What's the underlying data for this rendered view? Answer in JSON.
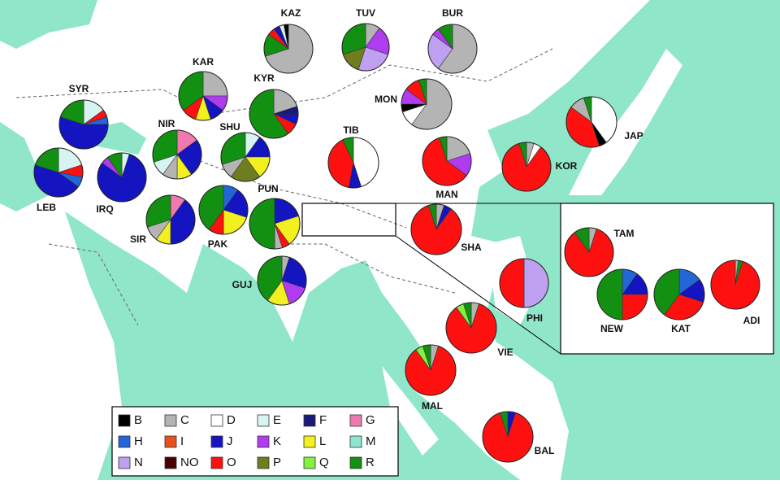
{
  "legend": [
    {
      "label": "B",
      "color": "#000000"
    },
    {
      "label": "C",
      "color": "#b4b4b4"
    },
    {
      "label": "D",
      "color": "#ffffff"
    },
    {
      "label": "E",
      "color": "#d8f4f2"
    },
    {
      "label": "F",
      "color": "#1a1a7a"
    },
    {
      "label": "G",
      "color": "#f07ab0"
    },
    {
      "label": "H",
      "color": "#2266d8"
    },
    {
      "label": "I",
      "color": "#e8501e"
    },
    {
      "label": "J",
      "color": "#1414c0"
    },
    {
      "label": "K",
      "color": "#b03cf0"
    },
    {
      "label": "L",
      "color": "#f2f01e"
    },
    {
      "label": "M",
      "color": "#8ee4d0"
    },
    {
      "label": "N",
      "color": "#c0a0f0"
    },
    {
      "label": "NO",
      "color": "#4a0000"
    },
    {
      "label": "O",
      "color": "#ff1010"
    },
    {
      "label": "P",
      "color": "#6e7e1e"
    },
    {
      "label": "Q",
      "color": "#84f040"
    },
    {
      "label": "R",
      "color": "#129012"
    }
  ],
  "populations": [
    {
      "label": "KAZ",
      "segments": [
        {
          "haplogroup": "C",
          "value": 70
        },
        {
          "haplogroup": "R",
          "value": 15
        },
        {
          "haplogroup": "O",
          "value": 5
        },
        {
          "haplogroup": "J",
          "value": 4
        },
        {
          "haplogroup": "E",
          "value": 3
        },
        {
          "haplogroup": "B",
          "value": 3
        }
      ]
    },
    {
      "label": "TUV",
      "segments": [
        {
          "haplogroup": "C",
          "value": 10
        },
        {
          "haplogroup": "K",
          "value": 20
        },
        {
          "haplogroup": "N",
          "value": 25
        },
        {
          "haplogroup": "P",
          "value": 15
        },
        {
          "haplogroup": "R",
          "value": 30
        }
      ]
    },
    {
      "label": "BUR",
      "segments": [
        {
          "haplogroup": "C",
          "value": 60
        },
        {
          "haplogroup": "N",
          "value": 25
        },
        {
          "haplogroup": "K",
          "value": 5
        },
        {
          "haplogroup": "R",
          "value": 10
        }
      ]
    },
    {
      "label": "KAR",
      "segments": [
        {
          "haplogroup": "C",
          "value": 25
        },
        {
          "haplogroup": "K",
          "value": 10
        },
        {
          "haplogroup": "J",
          "value": 10
        },
        {
          "haplogroup": "L",
          "value": 10
        },
        {
          "haplogroup": "O",
          "value": 10
        },
        {
          "haplogroup": "R",
          "value": 35
        }
      ]
    },
    {
      "label": "KYR",
      "segments": [
        {
          "haplogroup": "C",
          "value": 20
        },
        {
          "haplogroup": "F",
          "value": 6
        },
        {
          "haplogroup": "J",
          "value": 6
        },
        {
          "haplogroup": "O",
          "value": 8
        },
        {
          "haplogroup": "R",
          "value": 60
        }
      ]
    },
    {
      "label": "SYR",
      "segments": [
        {
          "haplogroup": "E",
          "value": 15
        },
        {
          "haplogroup": "O",
          "value": 5
        },
        {
          "haplogroup": "H",
          "value": 5
        },
        {
          "haplogroup": "J",
          "value": 55
        },
        {
          "haplogroup": "R",
          "value": 20
        }
      ]
    },
    {
      "label": "MON",
      "segments": [
        {
          "haplogroup": "C",
          "value": 60
        },
        {
          "haplogroup": "D",
          "value": 10
        },
        {
          "haplogroup": "B",
          "value": 5
        },
        {
          "haplogroup": "K",
          "value": 10
        },
        {
          "haplogroup": "O",
          "value": 10
        },
        {
          "haplogroup": "R",
          "value": 5
        }
      ]
    },
    {
      "label": "NIR",
      "segments": [
        {
          "haplogroup": "G",
          "value": 15
        },
        {
          "haplogroup": "J",
          "value": 25
        },
        {
          "haplogroup": "L",
          "value": 10
        },
        {
          "haplogroup": "C",
          "value": 10
        },
        {
          "haplogroup": "E",
          "value": 10
        },
        {
          "haplogroup": "R",
          "value": 30
        }
      ]
    },
    {
      "label": "SHU",
      "segments": [
        {
          "haplogroup": "E",
          "value": 10
        },
        {
          "haplogroup": "J",
          "value": 15
        },
        {
          "haplogroup": "L",
          "value": 15
        },
        {
          "haplogroup": "P",
          "value": 20
        },
        {
          "haplogroup": "C",
          "value": 10
        },
        {
          "haplogroup": "R",
          "value": 30
        }
      ]
    },
    {
      "label": "TIB",
      "segments": [
        {
          "haplogroup": "D",
          "value": 45
        },
        {
          "haplogroup": "J",
          "value": 8
        },
        {
          "haplogroup": "O",
          "value": 40
        },
        {
          "haplogroup": "R",
          "value": 7
        }
      ]
    },
    {
      "label": "MAN",
      "segments": [
        {
          "haplogroup": "C",
          "value": 20
        },
        {
          "haplogroup": "K",
          "value": 15
        },
        {
          "haplogroup": "O",
          "value": 60
        },
        {
          "haplogroup": "R",
          "value": 5
        }
      ]
    },
    {
      "label": "KOR",
      "segments": [
        {
          "haplogroup": "C",
          "value": 5
        },
        {
          "haplogroup": "D",
          "value": 5
        },
        {
          "haplogroup": "O",
          "value": 85
        },
        {
          "haplogroup": "R",
          "value": 5
        }
      ]
    },
    {
      "label": "JAP",
      "segments": [
        {
          "haplogroup": "D",
          "value": 40
        },
        {
          "haplogroup": "B",
          "value": 5
        },
        {
          "haplogroup": "O",
          "value": 40
        },
        {
          "haplogroup": "C",
          "value": 10
        },
        {
          "haplogroup": "R",
          "value": 5
        }
      ]
    },
    {
      "label": "LEB",
      "segments": [
        {
          "haplogroup": "E",
          "value": 20
        },
        {
          "haplogroup": "O",
          "value": 8
        },
        {
          "haplogroup": "H",
          "value": 7
        },
        {
          "haplogroup": "J",
          "value": 45
        },
        {
          "haplogroup": "R",
          "value": 20
        }
      ]
    },
    {
      "label": "IRQ",
      "segments": [
        {
          "haplogroup": "E",
          "value": 5
        },
        {
          "haplogroup": "J",
          "value": 80
        },
        {
          "haplogroup": "K",
          "value": 5
        },
        {
          "haplogroup": "R",
          "value": 10
        }
      ]
    },
    {
      "label": "SIR",
      "segments": [
        {
          "haplogroup": "G",
          "value": 10
        },
        {
          "haplogroup": "J",
          "value": 40
        },
        {
          "haplogroup": "L",
          "value": 10
        },
        {
          "haplogroup": "C",
          "value": 10
        },
        {
          "haplogroup": "R",
          "value": 30
        }
      ]
    },
    {
      "label": "PAK",
      "segments": [
        {
          "haplogroup": "H",
          "value": 10
        },
        {
          "haplogroup": "J",
          "value": 20
        },
        {
          "haplogroup": "L",
          "value": 20
        },
        {
          "haplogroup": "O",
          "value": 10
        },
        {
          "haplogroup": "R",
          "value": 40
        }
      ]
    },
    {
      "label": "PUN",
      "segments": [
        {
          "haplogroup": "J",
          "value": 20
        },
        {
          "haplogroup": "L",
          "value": 20
        },
        {
          "haplogroup": "O",
          "value": 5
        },
        {
          "haplogroup": "C",
          "value": 5
        },
        {
          "haplogroup": "R",
          "value": 50
        }
      ]
    },
    {
      "label": "SHA",
      "segments": [
        {
          "haplogroup": "C",
          "value": 5
        },
        {
          "haplogroup": "J",
          "value": 5
        },
        {
          "haplogroup": "O",
          "value": 85
        },
        {
          "haplogroup": "R",
          "value": 5
        }
      ]
    },
    {
      "label": "GUJ",
      "segments": [
        {
          "haplogroup": "C",
          "value": 5
        },
        {
          "haplogroup": "J",
          "value": 25
        },
        {
          "haplogroup": "K",
          "value": 15
        },
        {
          "haplogroup": "L",
          "value": 15
        },
        {
          "haplogroup": "R",
          "value": 40
        }
      ]
    },
    {
      "label": "PHI",
      "segments": [
        {
          "haplogroup": "N",
          "value": 50
        },
        {
          "haplogroup": "O",
          "value": 50
        }
      ]
    },
    {
      "label": "VIE",
      "segments": [
        {
          "haplogroup": "C",
          "value": 5
        },
        {
          "haplogroup": "O",
          "value": 85
        },
        {
          "haplogroup": "Q",
          "value": 5
        },
        {
          "haplogroup": "R",
          "value": 5
        }
      ]
    },
    {
      "label": "MAL",
      "segments": [
        {
          "haplogroup": "C",
          "value": 5
        },
        {
          "haplogroup": "O",
          "value": 85
        },
        {
          "haplogroup": "Q",
          "value": 5
        },
        {
          "haplogroup": "R",
          "value": 5
        }
      ]
    },
    {
      "label": "BAL",
      "segments": [
        {
          "haplogroup": "J",
          "value": 5
        },
        {
          "haplogroup": "O",
          "value": 90
        },
        {
          "haplogroup": "R",
          "value": 5
        }
      ]
    },
    {
      "label": "TAM",
      "segments": [
        {
          "haplogroup": "C",
          "value": 5
        },
        {
          "haplogroup": "O",
          "value": 85
        },
        {
          "haplogroup": "R",
          "value": 10
        }
      ]
    },
    {
      "label": "NEW",
      "segments": [
        {
          "haplogroup": "H",
          "value": 10
        },
        {
          "haplogroup": "J",
          "value": 15
        },
        {
          "haplogroup": "O",
          "value": 25
        },
        {
          "haplogroup": "R",
          "value": 50
        }
      ]
    },
    {
      "label": "KAT",
      "segments": [
        {
          "haplogroup": "H",
          "value": 15
        },
        {
          "haplogroup": "J",
          "value": 15
        },
        {
          "haplogroup": "O",
          "value": 30
        },
        {
          "haplogroup": "R",
          "value": 40
        }
      ]
    },
    {
      "label": "ADI",
      "segments": [
        {
          "haplogroup": "C",
          "value": 2
        },
        {
          "haplogroup": "R",
          "value": 3
        },
        {
          "haplogroup": "O",
          "value": 95
        }
      ]
    }
  ]
}
